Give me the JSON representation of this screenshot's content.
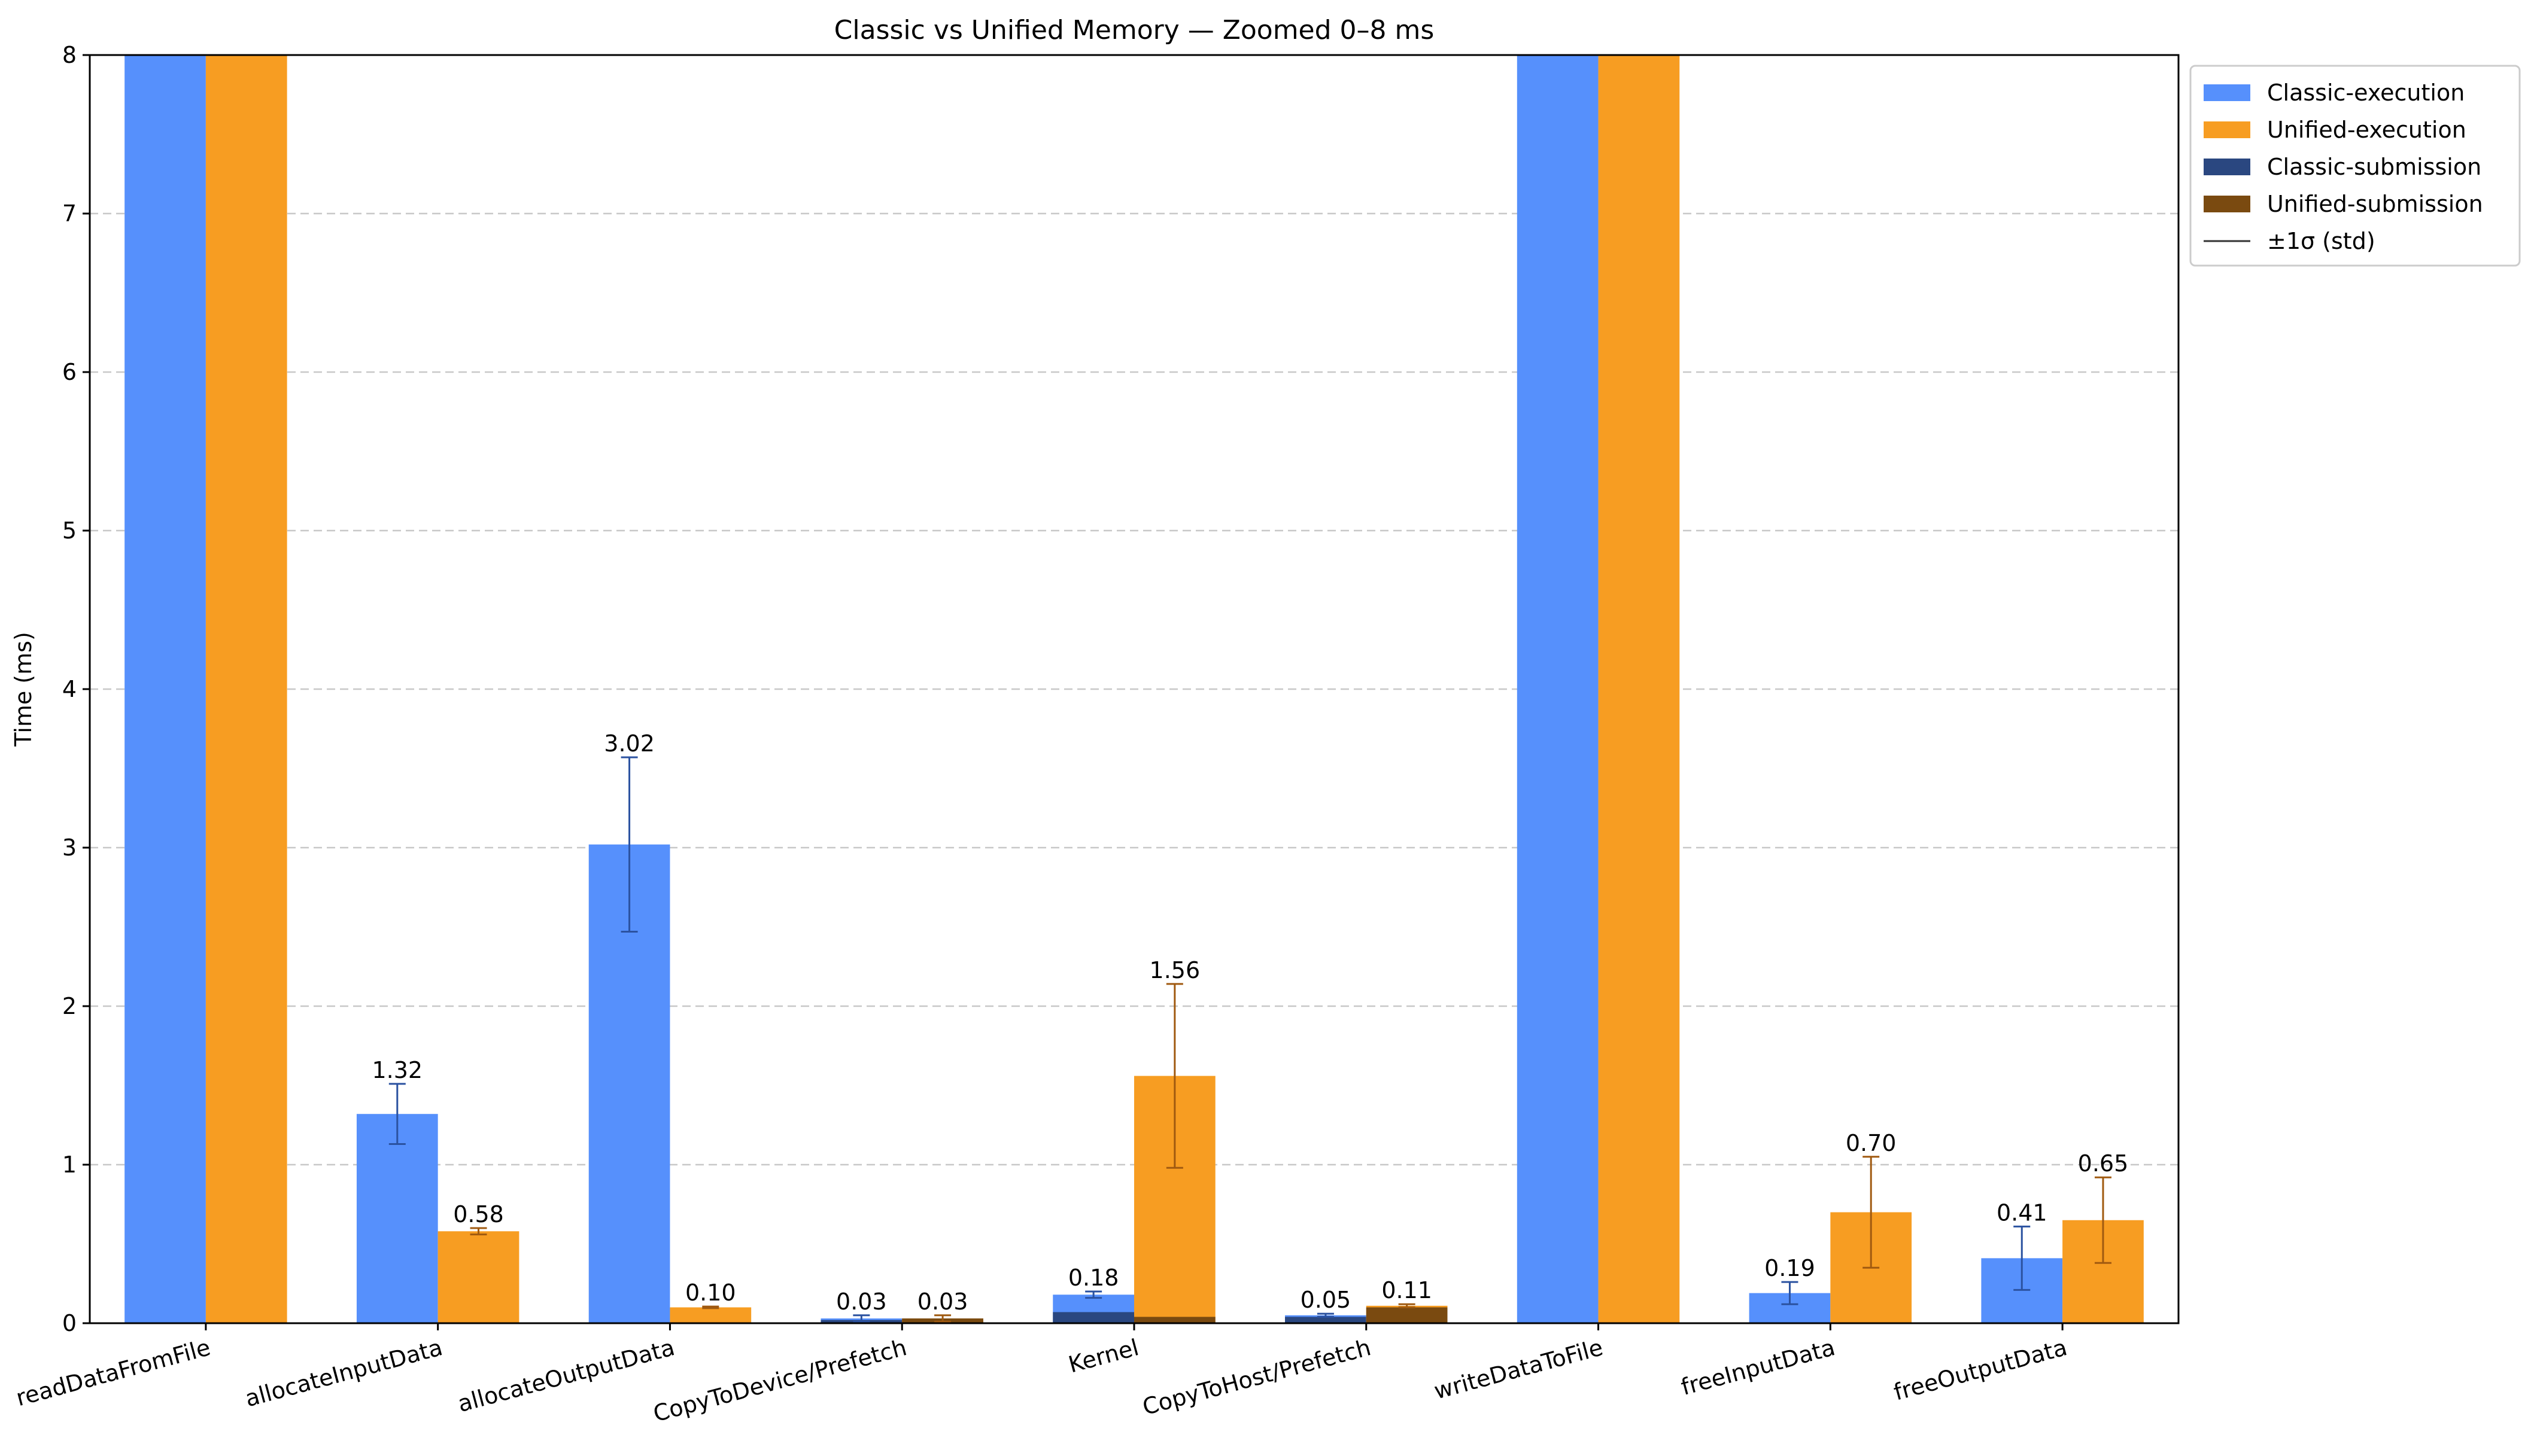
{
  "chart_data": {
    "type": "bar",
    "title": "Classic vs Unified Memory — Zoomed 0–8 ms",
    "xlabel": "",
    "ylabel": "Time (ms)",
    "ylim": [
      0,
      8
    ],
    "yticks": [
      "0",
      "1",
      "2",
      "3",
      "4",
      "5",
      "6",
      "7",
      "8"
    ],
    "grid": "y-dashed",
    "legend_position": "outside-top-right",
    "categories": [
      "readDataFromFile",
      "allocateInputData",
      "allocateOutputData",
      "CopyToDevice/Prefetch",
      "Kernel",
      "CopyToHost/Prefetch",
      "writeDataToFile",
      "freeInputData",
      "freeOutputData"
    ],
    "series": [
      {
        "name": "Classic-execution",
        "color": "#5690fc",
        "errcolor": "#2b52a0",
        "values": [
          8,
          1.32,
          3.02,
          0.03,
          0.18,
          0.05,
          8,
          0.19,
          0.41
        ],
        "errors": [
          null,
          0.19,
          0.55,
          0.02,
          0.02,
          0.01,
          null,
          0.07,
          0.2
        ],
        "labels": [
          null,
          "1.32",
          "3.02",
          "0.03",
          "0.18",
          "0.05",
          null,
          "0.19",
          "0.41"
        ]
      },
      {
        "name": "Unified-execution",
        "color": "#f79d22",
        "errcolor": "#a05a10",
        "values": [
          8,
          0.58,
          0.1,
          0.03,
          1.56,
          0.11,
          8,
          0.7,
          0.65
        ],
        "errors": [
          null,
          0.02,
          0.005,
          0.02,
          0.58,
          0.01,
          null,
          0.35,
          0.27
        ],
        "labels": [
          null,
          "0.58",
          "0.10",
          "0.03",
          "1.56",
          "0.11",
          null,
          "0.70",
          "0.65"
        ]
      },
      {
        "name": "Classic-submission",
        "color": "#2a4780",
        "values": [
          0,
          0,
          0,
          0.02,
          0.07,
          0.04,
          0,
          0,
          0
        ]
      },
      {
        "name": "Unified-submission",
        "color": "#7a4a10",
        "values": [
          0,
          0,
          0,
          0.03,
          0.04,
          0.1,
          0,
          0,
          0
        ]
      }
    ],
    "legend": [
      {
        "label": "Classic-execution",
        "color": "#5690fc",
        "kind": "patch"
      },
      {
        "label": "Unified-execution",
        "color": "#f79d22",
        "kind": "patch"
      },
      {
        "label": "Classic-submission",
        "color": "#2a4780",
        "kind": "patch"
      },
      {
        "label": "Unified-submission",
        "color": "#7a4a10",
        "kind": "patch"
      },
      {
        "label": "±1σ (std)",
        "color": "#333333",
        "kind": "line"
      }
    ]
  }
}
